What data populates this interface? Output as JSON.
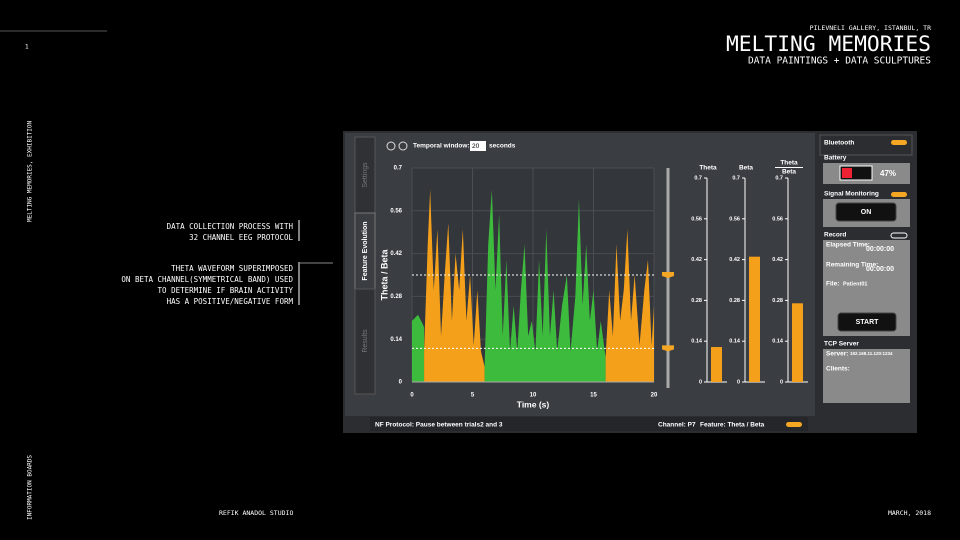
{
  "header": {
    "venue": "PILEVNELI GALLERY, ISTANBUL, TR",
    "title": "MELTING MEMORIES",
    "subtitle": "DATA  PAINTINGS + DATA SCULPTURES"
  },
  "side": {
    "page_number": "1",
    "label_top": "MELTING MEMORIES, EXHIBITION",
    "label_bottom": "INFORMATION BOARDS"
  },
  "annotations": [
    [
      "DATA COLLECTION PROCESS WITH",
      "32 CHANNEL EEG PROTOCOL"
    ],
    [
      "THETA WAVEFORM SUPERIMPOSED",
      "ON BETA CHANNEL(SYMMETRICAL BAND) USED",
      "TO DETERMINE IF BRAIN ACTIVITY",
      "HAS A POSITIVE/NEGATIVE FORM"
    ]
  ],
  "footer": {
    "studio": "REFIK ANADOL STUDIO",
    "date": "MARCH, 2018"
  },
  "app": {
    "tabs": [
      "Settings",
      "Feature Evolution",
      "Results"
    ],
    "temporal_window": {
      "label": "Temporal window:",
      "value": "20",
      "unit": "seconds"
    },
    "main_chart": {
      "type": "area",
      "ylabel": "Theta / Beta",
      "xlabel": "Time (s)",
      "xlim": [
        0,
        20
      ],
      "ylim": [
        0,
        0.7
      ],
      "xticks": [
        0,
        5,
        10,
        15,
        20
      ],
      "yticks": [
        0,
        0.14,
        0.28,
        0.42,
        0.56,
        0.7
      ],
      "grid": true,
      "thresholds": [
        0.35,
        0.11
      ],
      "threshold_color": "#f5a623",
      "series": [
        {
          "color": "#3dbb3d",
          "x": [
            0,
            0.5,
            1
          ],
          "values": [
            0.2,
            0.22,
            0.18
          ]
        },
        {
          "color": "#f5a01a",
          "x": [
            1,
            1.3,
            1.5,
            1.8,
            2.1,
            2.4,
            2.7,
            3,
            3.3,
            3.6,
            3.9,
            4.2,
            4.5,
            4.8,
            5.1,
            5.4,
            5.7,
            6
          ],
          "values": [
            0.1,
            0.45,
            0.63,
            0.3,
            0.5,
            0.15,
            0.35,
            0.52,
            0.2,
            0.42,
            0.3,
            0.5,
            0.2,
            0.35,
            0.12,
            0.3,
            0.1,
            0.05
          ]
        },
        {
          "color": "#3dbb3d",
          "x": [
            6,
            6.3,
            6.6,
            6.9,
            7.2,
            7.5,
            7.8,
            8.1,
            8.4,
            8.7,
            9,
            9.3,
            9.6,
            9.9,
            10.2,
            10.5,
            10.8,
            11.1,
            11.4,
            11.7,
            12,
            12.4,
            12.8,
            13.1,
            13.5,
            13.8,
            14.1,
            14.4,
            14.7,
            15,
            15.3,
            15.6,
            16
          ],
          "values": [
            0.05,
            0.45,
            0.63,
            0.3,
            0.55,
            0.15,
            0.4,
            0.1,
            0.25,
            0.1,
            0.3,
            0.45,
            0.15,
            0.2,
            0.1,
            0.4,
            0.15,
            0.5,
            0.15,
            0.3,
            0.1,
            0.25,
            0.35,
            0.1,
            0.28,
            0.6,
            0.25,
            0.45,
            0.2,
            0.3,
            0.1,
            0.2,
            0.08
          ]
        },
        {
          "color": "#f5a01a",
          "x": [
            16,
            16.3,
            16.6,
            16.9,
            17.2,
            17.5,
            17.8,
            18.1,
            18.4,
            18.8,
            19.2,
            19.5,
            19.8,
            20
          ],
          "values": [
            0.08,
            0.3,
            0.15,
            0.45,
            0.2,
            0.3,
            0.5,
            0.2,
            0.35,
            0.12,
            0.3,
            0.4,
            0.12,
            0.25
          ]
        }
      ]
    },
    "bar_charts": [
      {
        "type": "bar",
        "title": [
          "Theta"
        ],
        "value": 0.12,
        "color": "#f5a01a",
        "ylim": [
          0,
          0.7
        ],
        "yticks": [
          0,
          0.14,
          0.28,
          0.42,
          0.56,
          0.7
        ]
      },
      {
        "type": "bar",
        "title": [
          "Beta"
        ],
        "value": 0.43,
        "color": "#f5a01a",
        "ylim": [
          0,
          0.7
        ],
        "yticks": [
          0,
          0.14,
          0.28,
          0.42,
          0.56,
          0.7
        ]
      },
      {
        "type": "bar",
        "title": [
          "Theta",
          "Beta"
        ],
        "value": 0.27,
        "color": "#f5a01a",
        "ylim": [
          0,
          0.7
        ],
        "yticks": [
          0,
          0.14,
          0.28,
          0.42,
          0.56,
          0.7
        ]
      }
    ],
    "status": {
      "protocol": "NF Protocol: Pause between trials2 and 3",
      "channel": "Channel: P7",
      "feature": "Feature: Theta / Beta"
    },
    "panel": {
      "bluetooth": "Bluetooth",
      "battery": "Battery",
      "battery_level": "47%",
      "signal": "Signal Monitoring",
      "signal_button": "ON",
      "record": "Record",
      "elapsed_label": "Elapsed Time:",
      "elapsed": "00:00:00",
      "remaining_label": "Remaining Time:",
      "remaining": "00:00:00",
      "file_label": "File:",
      "file": "Patient01",
      "start": "START",
      "tcp": "TCP Server",
      "server_label": "Server:",
      "server": "192.168.11.120:1234",
      "clients_label": "Clients:"
    }
  }
}
